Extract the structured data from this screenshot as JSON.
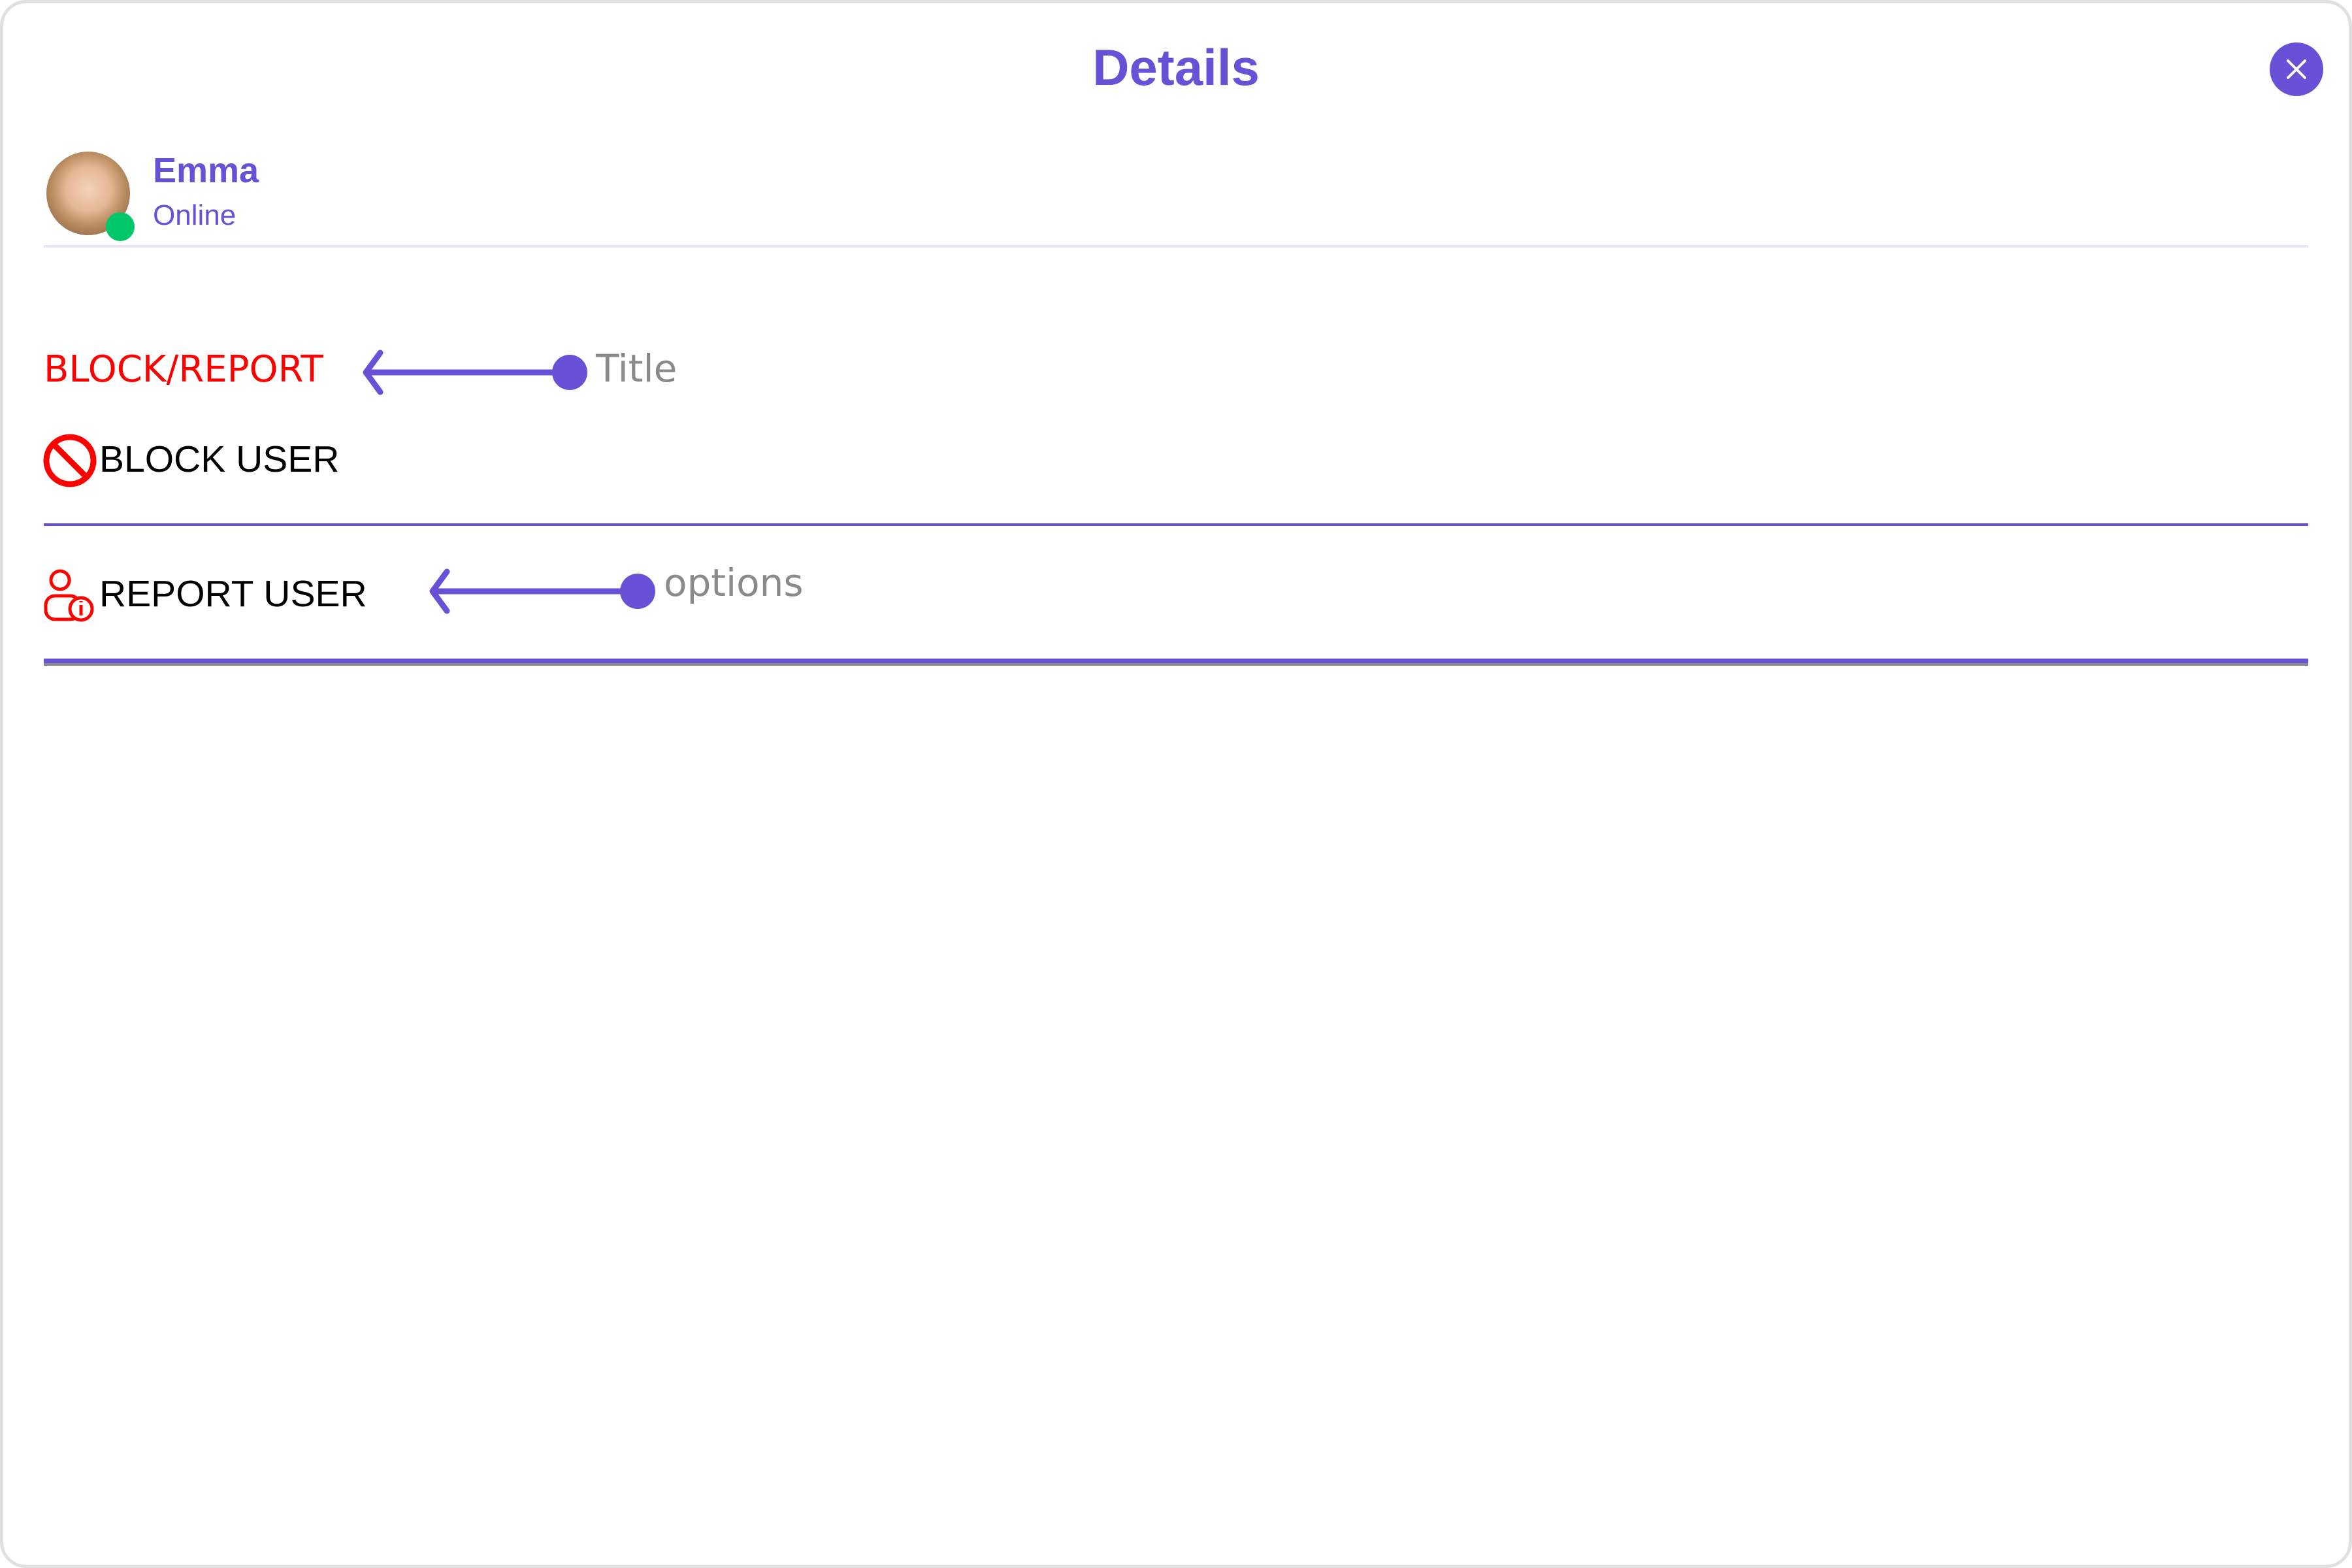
{
  "header": {
    "title": "Details",
    "close_icon": "close-icon"
  },
  "user": {
    "name": "Emma",
    "status": "Online",
    "status_color": "#00c86a"
  },
  "section": {
    "title": "BLOCK/REPORT",
    "title_color": "#ff0000"
  },
  "options": [
    {
      "label": "BLOCK USER",
      "icon": "block-icon"
    },
    {
      "label": "REPORT USER",
      "icon": "report-user-icon"
    }
  ],
  "annotations": {
    "title": "Title",
    "options": "options"
  },
  "colors": {
    "accent": "#6851d6",
    "danger": "#ff0000"
  }
}
